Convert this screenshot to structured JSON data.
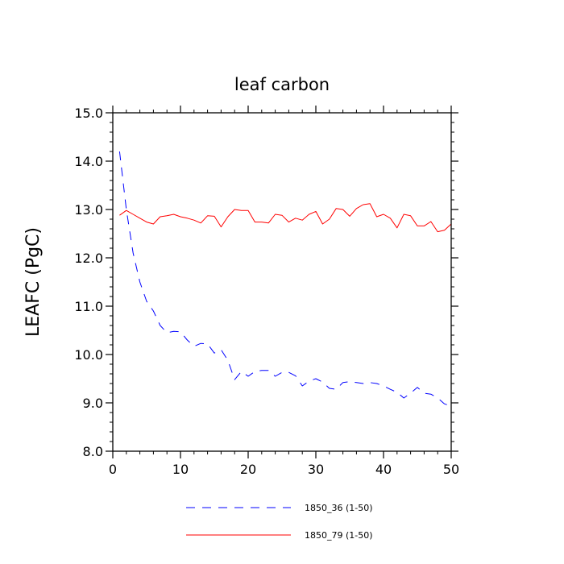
{
  "chart_data": {
    "type": "line",
    "title": "leaf carbon",
    "xlabel": "",
    "ylabel": "LEAFC  (PgC)",
    "xlim": [
      0,
      50
    ],
    "ylim": [
      8.0,
      15.0
    ],
    "x_ticks": [
      0,
      10,
      20,
      30,
      40,
      50
    ],
    "x_tick_labels": [
      "0",
      "10",
      "20",
      "30",
      "40",
      "50"
    ],
    "y_ticks": [
      8,
      9,
      10,
      11,
      12,
      13,
      14,
      15
    ],
    "y_tick_labels": [
      "8.0",
      "9.0",
      "10.0",
      "11.0",
      "12.0",
      "13.0",
      "14.0",
      "15.0"
    ],
    "legend_position": "bottom-center",
    "grid": false,
    "x": [
      1,
      2,
      3,
      4,
      5,
      6,
      7,
      8,
      9,
      10,
      11,
      12,
      13,
      14,
      15,
      16,
      17,
      18,
      19,
      20,
      21,
      22,
      23,
      24,
      25,
      26,
      27,
      28,
      29,
      30,
      31,
      32,
      33,
      34,
      35,
      36,
      37,
      38,
      39,
      40,
      41,
      42,
      43,
      44,
      45,
      46,
      47,
      48,
      49,
      50
    ],
    "series": [
      {
        "name": "1850_36 (1-50)",
        "color": "#0000ff",
        "dash": "dashed",
        "values": [
          14.2,
          13.0,
          12.1,
          11.5,
          11.1,
          10.9,
          10.6,
          10.45,
          10.48,
          10.47,
          10.3,
          10.17,
          10.23,
          10.22,
          10.03,
          10.1,
          9.88,
          9.48,
          9.65,
          9.55,
          9.65,
          9.67,
          9.67,
          9.55,
          9.63,
          9.63,
          9.56,
          9.35,
          9.45,
          9.5,
          9.43,
          9.3,
          9.28,
          9.42,
          9.44,
          9.42,
          9.4,
          9.42,
          9.4,
          9.35,
          9.28,
          9.22,
          9.1,
          9.2,
          9.32,
          9.2,
          9.18,
          9.1,
          8.98,
          8.93
        ]
      },
      {
        "name": "1850_79 (1-50)",
        "color": "#ff0000",
        "dash": "solid",
        "values": [
          12.88,
          12.98,
          12.9,
          12.82,
          12.74,
          12.7,
          12.85,
          12.87,
          12.9,
          12.85,
          12.82,
          12.78,
          12.72,
          12.87,
          12.86,
          12.64,
          12.85,
          13.0,
          12.98,
          12.98,
          12.74,
          12.74,
          12.72,
          12.9,
          12.88,
          12.74,
          12.82,
          12.78,
          12.9,
          12.96,
          12.7,
          12.8,
          13.02,
          13.0,
          12.86,
          13.02,
          13.1,
          13.12,
          12.85,
          12.9,
          12.82,
          12.62,
          12.9,
          12.87,
          12.66,
          12.66,
          12.75,
          12.54,
          12.57,
          12.7
        ]
      }
    ]
  }
}
